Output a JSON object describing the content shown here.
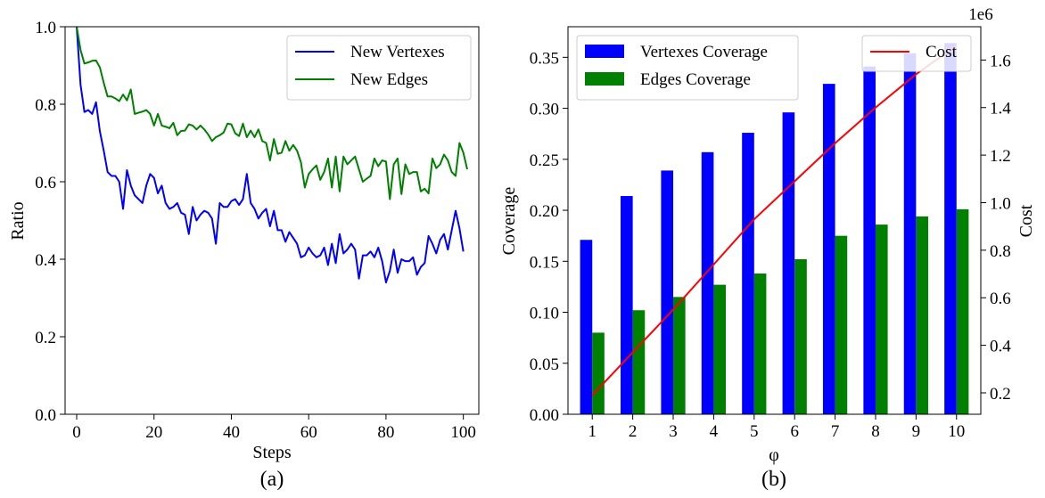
{
  "chart_data": [
    {
      "type": "line",
      "panel_label": "(a)",
      "xlabel": "Steps",
      "ylabel": "Ratio",
      "xlim": [
        -3,
        104
      ],
      "ylim": [
        0.0,
        1.0
      ],
      "x_ticks": [
        0,
        20,
        40,
        60,
        80,
        100
      ],
      "x_tick_labels": [
        "0",
        "20",
        "40",
        "60",
        "80",
        "100"
      ],
      "y_ticks": [
        0.0,
        0.2,
        0.4,
        0.6,
        0.8,
        1.0
      ],
      "y_tick_labels": [
        "0.0",
        "0.2",
        "0.4",
        "0.6",
        "0.8",
        "1.0"
      ],
      "grid": false,
      "legend_position": "top-right",
      "series": [
        {
          "name": "New Vertexes",
          "color": "#0000ff",
          "values": [
            1.0,
            0.85,
            0.78,
            0.785,
            0.775,
            0.805,
            0.73,
            0.68,
            0.625,
            0.615,
            0.615,
            0.6,
            0.53,
            0.63,
            0.59,
            0.565,
            0.555,
            0.545,
            0.59,
            0.62,
            0.61,
            0.57,
            0.59,
            0.545,
            0.53,
            0.535,
            0.545,
            0.52,
            0.515,
            0.465,
            0.535,
            0.5,
            0.515,
            0.525,
            0.52,
            0.505,
            0.44,
            0.545,
            0.535,
            0.535,
            0.55,
            0.555,
            0.54,
            0.555,
            0.62,
            0.545,
            0.53,
            0.505,
            0.52,
            0.53,
            0.485,
            0.525,
            0.475,
            0.475,
            0.445,
            0.47,
            0.455,
            0.44,
            0.405,
            0.41,
            0.43,
            0.415,
            0.405,
            0.41,
            0.43,
            0.385,
            0.44,
            0.39,
            0.465,
            0.415,
            0.425,
            0.44,
            0.425,
            0.35,
            0.41,
            0.41,
            0.42,
            0.405,
            0.43,
            0.395,
            0.34,
            0.37,
            0.425,
            0.365,
            0.4,
            0.395,
            0.395,
            0.405,
            0.36,
            0.38,
            0.39,
            0.46,
            0.44,
            0.415,
            0.45,
            0.465,
            0.425,
            0.475,
            0.525,
            0.48,
            0.42
          ]
        },
        {
          "name": "New Edges",
          "color": "#008000",
          "values": [
            1.0,
            0.94,
            0.905,
            0.908,
            0.912,
            0.913,
            0.895,
            0.855,
            0.82,
            0.82,
            0.815,
            0.808,
            0.825,
            0.81,
            0.838,
            0.775,
            0.778,
            0.781,
            0.785,
            0.775,
            0.745,
            0.775,
            0.745,
            0.742,
            0.738,
            0.752,
            0.72,
            0.731,
            0.732,
            0.748,
            0.745,
            0.735,
            0.745,
            0.735,
            0.722,
            0.705,
            0.715,
            0.72,
            0.727,
            0.75,
            0.748,
            0.725,
            0.718,
            0.75,
            0.715,
            0.732,
            0.715,
            0.735,
            0.705,
            0.7,
            0.655,
            0.71,
            0.672,
            0.675,
            0.705,
            0.68,
            0.695,
            0.68,
            0.65,
            0.585,
            0.62,
            0.632,
            0.642,
            0.605,
            0.625,
            0.66,
            0.585,
            0.665,
            0.575,
            0.665,
            0.645,
            0.655,
            0.665,
            0.632,
            0.6,
            0.608,
            0.615,
            0.66,
            0.64,
            0.655,
            0.652,
            0.555,
            0.645,
            0.66,
            0.568,
            0.645,
            0.62,
            0.625,
            0.625,
            0.575,
            0.582,
            0.57,
            0.66,
            0.635,
            0.645,
            0.67,
            0.655,
            0.625,
            0.615,
            0.7,
            0.675,
            0.632
          ]
        }
      ]
    },
    {
      "type": "bar",
      "panel_label": "(b)",
      "xlabel": "φ",
      "ylabel": "Coverage",
      "y2label": "Cost",
      "y2_offset_label": "1e6",
      "categories": [
        "1",
        "2",
        "3",
        "4",
        "5",
        "6",
        "7",
        "8",
        "9",
        "10"
      ],
      "ylim": [
        0.0,
        0.38
      ],
      "y_ticks": [
        0.0,
        0.05,
        0.1,
        0.15,
        0.2,
        0.25,
        0.3,
        0.35
      ],
      "y_tick_labels": [
        "0.00",
        "0.05",
        "0.10",
        "0.15",
        "0.20",
        "0.25",
        "0.30",
        "0.35"
      ],
      "y2lim": [
        0.11,
        1.74
      ],
      "y2_ticks": [
        0.2,
        0.4,
        0.6,
        0.8,
        1.0,
        1.2,
        1.4,
        1.6
      ],
      "y2_tick_labels": [
        "0.2",
        "0.4",
        "0.6",
        "0.8",
        "1.0",
        "1.2",
        "1.4",
        "1.6"
      ],
      "grid": false,
      "legend_position": "top-left",
      "legend2_position": "top-right",
      "series": [
        {
          "name": "Vertexes Coverage",
          "color": "#0000ff",
          "axis": "left",
          "values": [
            0.171,
            0.214,
            0.239,
            0.257,
            0.276,
            0.296,
            0.324,
            0.341,
            0.354,
            0.364
          ]
        },
        {
          "name": "Edges Coverage",
          "color": "#008000",
          "axis": "left",
          "values": [
            0.08,
            0.102,
            0.115,
            0.127,
            0.138,
            0.152,
            0.175,
            0.186,
            0.194,
            0.201
          ]
        },
        {
          "name": "Cost",
          "color": "#ff0000",
          "axis": "right",
          "type": "line",
          "values": [
            0.19,
            0.37,
            0.55,
            0.74,
            0.93,
            1.09,
            1.25,
            1.4,
            1.54,
            1.66
          ]
        }
      ]
    }
  ]
}
